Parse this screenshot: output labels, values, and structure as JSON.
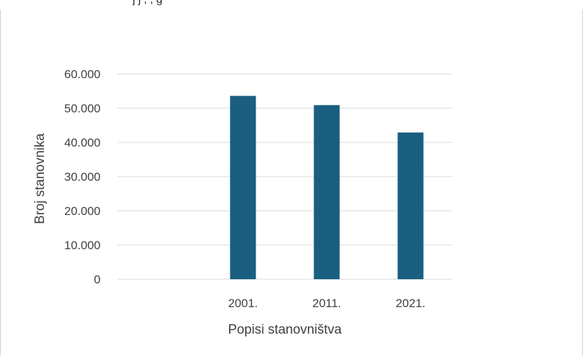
{
  "caption_fragment": "j  j                           ,      ,        g",
  "chart_data": {
    "type": "bar",
    "categories": [
      "",
      "2001.",
      "2011.",
      "2021."
    ],
    "values": [
      null,
      53600,
      50900,
      42900
    ],
    "xlabel": "Popisi stanovništva",
    "ylabel": "Broj stanovnika",
    "ylim": [
      0,
      60000
    ],
    "yticks": [
      0,
      10000,
      20000,
      30000,
      40000,
      50000,
      60000
    ],
    "ytick_labels": [
      "0",
      "10.000",
      "20.000",
      "30.000",
      "40.000",
      "50.000",
      "60.000"
    ],
    "grid": true,
    "legend": "none",
    "bar_color": "#1a5f80",
    "grid_color": "#d9d9d9"
  }
}
